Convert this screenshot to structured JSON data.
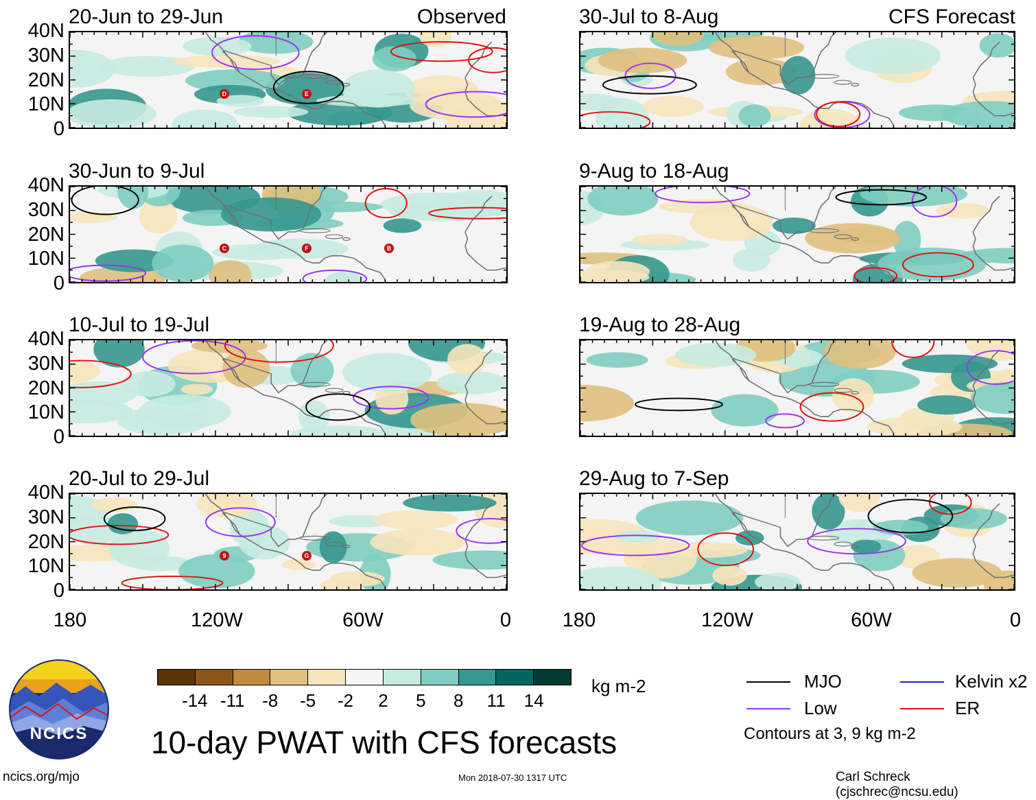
{
  "observed_label": "Observed",
  "forecast_label": "CFS Forecast",
  "panels_left": [
    {
      "title": "20-Jun to 29-Jun",
      "storms": [
        "D",
        "E"
      ]
    },
    {
      "title": "30-Jun to 9-Jul",
      "storms": [
        "C",
        "F",
        "B"
      ]
    },
    {
      "title": "10-Jul to 19-Jul",
      "storms": []
    },
    {
      "title": "20-Jul to 29-Jul",
      "storms": [
        "9",
        "G"
      ]
    }
  ],
  "panels_right": [
    {
      "title": "30-Jul to 8-Aug"
    },
    {
      "title": "9-Aug to 18-Aug"
    },
    {
      "title": "19-Aug to 28-Aug"
    },
    {
      "title": "29-Aug to 7-Sep"
    }
  ],
  "y_ticks": [
    "40N",
    "30N",
    "20N",
    "10N",
    "0"
  ],
  "x_ticks": [
    "180",
    "120W",
    "60W",
    "0"
  ],
  "colorbar": {
    "colors": [
      "#5a3300",
      "#8c5617",
      "#c08a3f",
      "#dfc07e",
      "#f6e4bb",
      "#f5f5f5",
      "#c6ebe1",
      "#80cdc1",
      "#35978f",
      "#01665e",
      "#003c30"
    ],
    "ticks": [
      "-14",
      "-11",
      "-8",
      "-5",
      "-2",
      "2",
      "5",
      "8",
      "11",
      "14"
    ],
    "unit": "kg m-2"
  },
  "main_title": "10-day PWAT with CFS forecasts",
  "legend": {
    "mjo": {
      "label": "MJO",
      "color": "#000000"
    },
    "kelvin": {
      "label": "Kelvin x2",
      "color": "#1a1adb"
    },
    "low": {
      "label": "Low",
      "color": "#9a32f0"
    },
    "er": {
      "label": "ER",
      "color": "#e01010"
    },
    "note": "Contours at 3, 9 kg m-2"
  },
  "logo": {
    "text": "NCICS"
  },
  "footer": {
    "left": "ncics.org/mjo",
    "center": "Mon 2018-07-30 1317 UTC",
    "right": "Carl Schreck (cjschrec@ncsu.edu)"
  }
}
